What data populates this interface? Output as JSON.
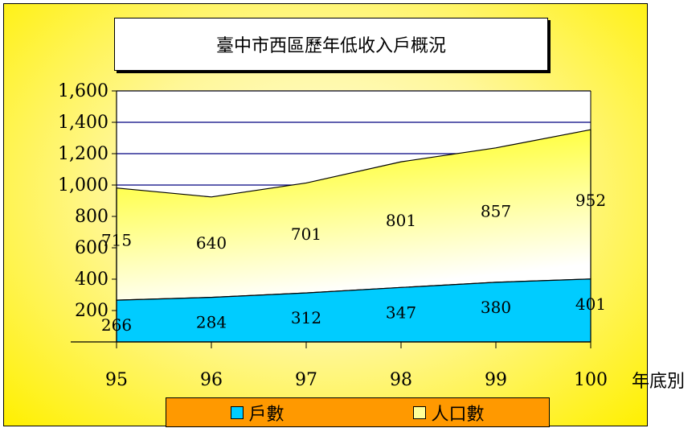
{
  "chart_data": {
    "type": "area",
    "title": "臺中市西區歷年低收入戶概況",
    "xlabel": "年底別",
    "categories": [
      "95",
      "96",
      "97",
      "98",
      "99",
      "100"
    ],
    "ylim": [
      0,
      1600
    ],
    "y_ticks": [
      "1,600",
      "1,400",
      "1,200",
      "1,000",
      "800",
      "600",
      "400",
      "200",
      ""
    ],
    "y_tick_values": [
      1600,
      1400,
      1200,
      1000,
      800,
      600,
      400,
      200,
      0
    ],
    "stacked": true,
    "series": [
      {
        "name": "戶數",
        "values": [
          266,
          284,
          312,
          347,
          380,
          401
        ],
        "color": "#00ccff"
      },
      {
        "name": "人口數",
        "values": [
          715,
          640,
          701,
          801,
          857,
          952
        ],
        "color": "#ffff99"
      }
    ],
    "grid": true,
    "legend_position": "bottom"
  }
}
